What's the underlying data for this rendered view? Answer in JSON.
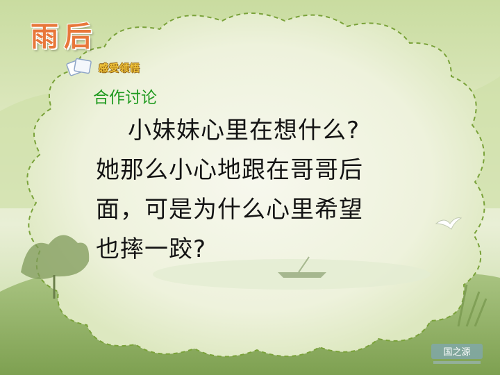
{
  "slide": {
    "title": "雨后",
    "section_badge": "感受领悟",
    "subheading": "合作讨论",
    "question_lines": [
      "小妹妹心里在想什么?",
      "她那么小心地跟在哥哥后",
      "面，可是为什么心里希望",
      "也摔一跤?"
    ],
    "watermark_logo": "国之源"
  },
  "colors": {
    "title": "#e8773a",
    "subheading": "#1e9a1e",
    "frame_dash": "#7aa23a",
    "cloud_fill": "#f2f5e6"
  }
}
